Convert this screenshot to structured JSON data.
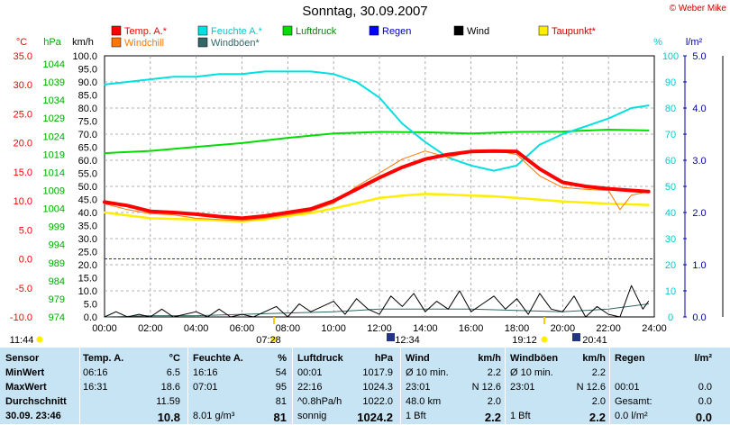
{
  "title": "Sonntag, 30.09.2007",
  "copyright": "© Weber Mike",
  "chart_data": {
    "type": "line",
    "x_ticks": [
      "00:00",
      "02:00",
      "04:00",
      "06:00",
      "08:00",
      "10:00",
      "12:00",
      "14:00",
      "16:00",
      "18:00",
      "20:00",
      "22:00",
      "24:00"
    ],
    "axes": {
      "celsius": {
        "label": "°C",
        "ticks": [
          "35.0",
          "30.0",
          "25.0",
          "20.0",
          "15.0",
          "10.0",
          "5.0",
          "0.0",
          "-5.0",
          "-10.0"
        ],
        "color": "#ff0000"
      },
      "hpa": {
        "label": "hPa",
        "ticks": [
          "1044",
          "1039",
          "1034",
          "1029",
          "1024",
          "1019",
          "1014",
          "1009",
          "1004",
          "999",
          "994",
          "989",
          "984",
          "979",
          "974"
        ],
        "color": "#00aa00"
      },
      "kmh": {
        "label": "km/h",
        "ticks": [
          "100.0",
          "95.0",
          "90.0",
          "85.0",
          "80.0",
          "75.0",
          "70.0",
          "65.0",
          "60.0",
          "55.0",
          "50.0",
          "45.0",
          "40.0",
          "35.0",
          "30.0",
          "25.0",
          "20.0",
          "15.0",
          "10.0",
          "5.0",
          "0.0"
        ],
        "color": "#000000"
      },
      "percent": {
        "label": "%",
        "ticks": [
          "100",
          "90",
          "80",
          "70",
          "60",
          "50",
          "40",
          "30",
          "20",
          "10",
          "0"
        ],
        "color": "#00cccc"
      },
      "rain": {
        "label": "l/m²",
        "ticks": [
          "5.0",
          "4.0",
          "3.0",
          "2.0",
          "1.0",
          "0.0"
        ],
        "color": "#0000aa"
      }
    },
    "legend": [
      {
        "name": "Temp. A.*",
        "color": "#ff0000"
      },
      {
        "name": "Feuchte A.*",
        "color": "#00e0e0"
      },
      {
        "name": "Luftdruck",
        "color": "#00dd00"
      },
      {
        "name": "Regen",
        "color": "#0000ff"
      },
      {
        "name": "Wind",
        "color": "#000000"
      },
      {
        "name": "Taupunkt*",
        "color": "#ffee00"
      },
      {
        "name": "Windchill",
        "color": "#ff7700"
      },
      {
        "name": "Windböen*",
        "color": "#336666"
      }
    ],
    "series": [
      {
        "name": "Temp. A.*",
        "unit": "°C",
        "x": [
          0,
          1,
          2,
          3,
          4,
          5,
          6,
          7,
          8,
          9,
          10,
          11,
          12,
          13,
          14,
          15,
          16,
          17,
          18,
          19,
          20,
          21,
          22,
          23,
          23.75
        ],
        "values": [
          9.8,
          9.2,
          8.2,
          8.0,
          7.7,
          7.3,
          7.0,
          7.4,
          8.0,
          8.6,
          10.0,
          12.0,
          14.0,
          15.8,
          17.2,
          18.0,
          18.5,
          18.6,
          18.5,
          15.5,
          13.2,
          12.5,
          12.1,
          11.8,
          11.6
        ]
      },
      {
        "name": "Feuchte A.*",
        "unit": "%",
        "x": [
          0,
          1,
          2,
          3,
          4,
          5,
          6,
          7,
          8,
          9,
          10,
          11,
          12,
          13,
          14,
          15,
          16,
          17,
          18,
          19,
          20,
          21,
          22,
          23,
          23.75
        ],
        "values": [
          89,
          90,
          91,
          92,
          92,
          93,
          93,
          94,
          94,
          94,
          93,
          90,
          84,
          74,
          67,
          61,
          58,
          56,
          58,
          66,
          70,
          73,
          76,
          80,
          81
        ]
      },
      {
        "name": "Luftdruck",
        "unit": "hPa",
        "x": [
          0,
          2,
          4,
          6,
          8,
          10,
          12,
          14,
          16,
          18,
          20,
          22,
          23.75
        ],
        "values": [
          1017.9,
          1018.5,
          1019.6,
          1020.6,
          1022.0,
          1023.2,
          1023.6,
          1023.5,
          1023.2,
          1023.6,
          1023.7,
          1024.2,
          1024.0
        ]
      },
      {
        "name": "Taupunkt*",
        "unit": "°C",
        "x": [
          0,
          1,
          2,
          3,
          4,
          5,
          6,
          7,
          8,
          9,
          10,
          11,
          12,
          13,
          14,
          15,
          16,
          17,
          18,
          19,
          20,
          21,
          22,
          23,
          23.75
        ],
        "values": [
          8.0,
          7.5,
          7.0,
          6.9,
          6.8,
          6.6,
          6.5,
          6.8,
          7.4,
          7.9,
          8.7,
          9.6,
          10.5,
          10.9,
          11.2,
          11.1,
          10.9,
          10.8,
          10.5,
          10.2,
          9.9,
          9.7,
          9.5,
          9.4,
          9.3
        ]
      },
      {
        "name": "Windchill",
        "unit": "°C",
        "x": [
          0,
          1,
          2,
          3,
          4,
          5,
          6,
          7,
          8,
          9,
          10,
          11,
          12,
          13,
          14,
          15,
          16,
          17,
          18,
          19,
          20,
          21,
          22,
          22.5,
          23,
          23.75
        ],
        "values": [
          9.5,
          8.5,
          7.8,
          7.6,
          7.0,
          6.8,
          6.6,
          7.0,
          7.6,
          8.2,
          9.6,
          12.5,
          14.8,
          17.2,
          18.6,
          17.5,
          18.5,
          18.7,
          18.0,
          14.3,
          12.3,
          12.0,
          11.8,
          8.5,
          11.0,
          11.6
        ]
      },
      {
        "name": "Wind",
        "unit": "km/h",
        "x": [
          0,
          0.5,
          1,
          1.5,
          2,
          2.5,
          3,
          3.5,
          4,
          4.5,
          5,
          5.5,
          6,
          6.5,
          7,
          7.5,
          8,
          8.5,
          9,
          9.5,
          10,
          10.5,
          11,
          11.5,
          12,
          12.5,
          13,
          13.5,
          14,
          14.5,
          15,
          15.5,
          16,
          16.5,
          17,
          17.5,
          18,
          18.5,
          19,
          19.5,
          20,
          20.5,
          21,
          21.5,
          22,
          22.5,
          23,
          23.5,
          23.75
        ],
        "values": [
          0,
          2,
          0,
          1,
          0,
          3,
          0,
          1,
          2,
          0,
          3,
          0,
          1,
          0,
          2,
          4,
          0,
          5,
          2,
          4,
          6,
          1,
          7,
          3,
          1,
          8,
          4,
          9,
          2,
          6,
          3,
          10,
          2,
          5,
          8,
          3,
          7,
          1,
          9,
          3,
          2,
          8,
          0,
          4,
          1,
          0,
          12,
          3,
          6
        ]
      },
      {
        "name": "Windböen*",
        "unit": "km/h",
        "x": [
          0,
          2,
          4,
          6,
          8,
          10,
          12,
          14,
          16,
          18,
          20,
          22,
          23.75
        ],
        "values": [
          0,
          0.5,
          0.5,
          1,
          1.5,
          2,
          3,
          3,
          3,
          2.5,
          2,
          3,
          5
        ]
      }
    ],
    "time_markers": [
      {
        "label": "11:44",
        "kind": "moonrise"
      },
      {
        "label": "07:28",
        "kind": "sunrise"
      },
      {
        "label": "12:34",
        "kind": "moon"
      },
      {
        "label": "19:12",
        "kind": "sunset"
      },
      {
        "label": "20:41",
        "kind": "moon"
      }
    ]
  },
  "stats": {
    "headers": [
      [
        "Sensor"
      ],
      [
        "Temp. A.",
        "°C"
      ],
      [
        "Feuchte A.",
        "%"
      ],
      [
        "Luftdruck",
        "hPa"
      ],
      [
        "Wind",
        "km/h"
      ],
      [
        "Windböen",
        "km/h"
      ],
      [
        "Regen",
        "l/m²"
      ]
    ],
    "rows": [
      {
        "label": "MinWert",
        "cells": [
          "06:16",
          "6.5",
          "16:16",
          "54",
          "00:01",
          "1017.9",
          "Ø 10 min.",
          "2.2",
          "Ø 10 min.",
          "2.2",
          "",
          ""
        ]
      },
      {
        "label": "MaxWert",
        "cells": [
          "16:31",
          "18.6",
          "07:01",
          "95",
          "22:16",
          "1024.3",
          "23:01",
          "N 12.6",
          "23:01",
          "N 12.6",
          "00:01",
          "0.0"
        ]
      },
      {
        "label": "Durchschnitt",
        "cells": [
          "",
          "11.59",
          "",
          "81",
          "^0.8hPa/h",
          "1022.0",
          "48.0 km",
          "2.0",
          "",
          "2.0",
          "Gesamt:",
          "0.0"
        ]
      },
      {
        "label": "30.09. 23:46",
        "cells": [
          "",
          "10.8",
          "8.01 g/m³",
          "81",
          "sonnig",
          "1024.2",
          "1 Bft",
          "2.2",
          "1 Bft",
          "2.2",
          "0.0 l/m²",
          "0.0"
        ]
      }
    ]
  }
}
